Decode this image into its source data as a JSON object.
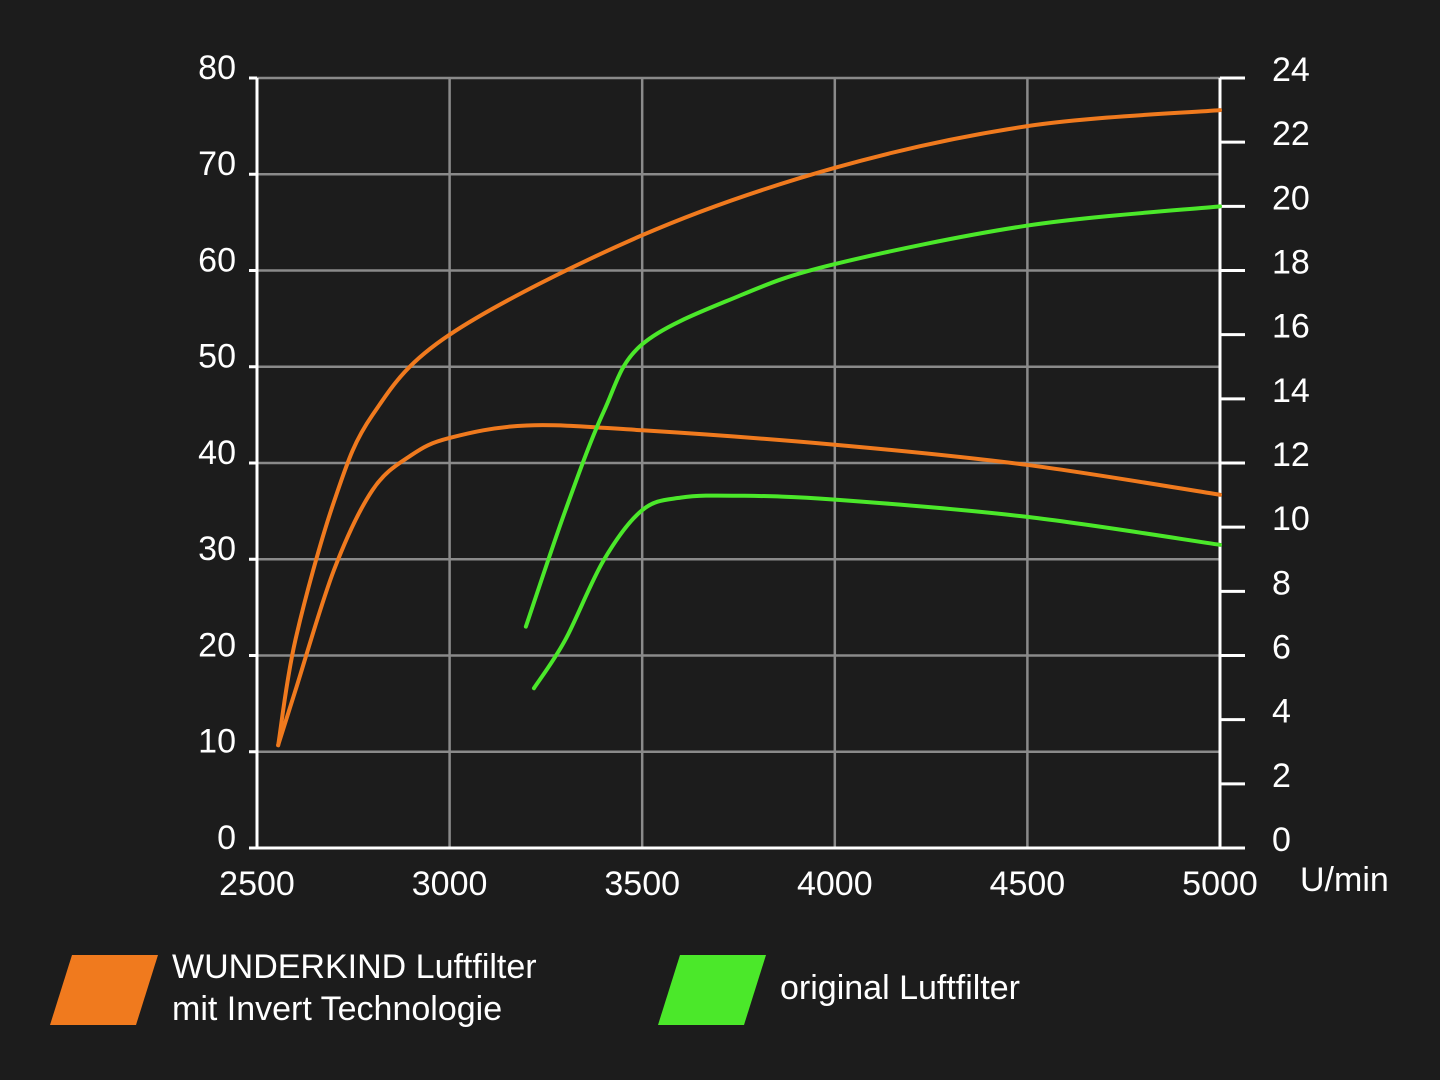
{
  "chart_data": {
    "type": "line",
    "xlabel": "U/min",
    "xlim": [
      2500,
      5000
    ],
    "xticks": [
      2500,
      3000,
      3500,
      4000,
      4500,
      5000
    ],
    "ylim": [
      0,
      80
    ],
    "yticks": [
      0,
      10,
      20,
      30,
      40,
      50,
      60,
      70,
      80
    ],
    "y2lim": [
      0,
      24
    ],
    "y2ticks": [
      0,
      2,
      4,
      6,
      8,
      10,
      12,
      14,
      16,
      18,
      20,
      22,
      24
    ],
    "grid": true,
    "series": [
      {
        "color": "#f07a1e",
        "axis": "y2",
        "x": [
          2555,
          2600,
          2700,
          2800,
          3000,
          3500,
          4000,
          4500,
          5000
        ],
        "values": [
          3.2,
          6.5,
          10.8,
          13.5,
          16.0,
          19.1,
          21.2,
          22.5,
          23.0
        ]
      },
      {
        "color": "#f07a1e",
        "axis": "y",
        "x": [
          2555,
          2600,
          2700,
          2800,
          2900,
          3000,
          3200,
          3500,
          4000,
          4500,
          5000
        ],
        "values": [
          10.7,
          16.4,
          28.9,
          37.2,
          40.8,
          42.6,
          43.9,
          43.4,
          41.9,
          39.8,
          36.7
        ]
      },
      {
        "color": "#4be82a",
        "axis": "y2",
        "x": [
          3198,
          3300,
          3400,
          3500,
          3750,
          4000,
          4500,
          5000
        ],
        "values": [
          6.9,
          10.5,
          13.6,
          15.7,
          17.2,
          18.2,
          19.4,
          20.0
        ]
      },
      {
        "color": "#4be82a",
        "axis": "y",
        "x": [
          3219,
          3300,
          3400,
          3500,
          3600,
          3750,
          4000,
          4500,
          5000
        ],
        "values": [
          16.6,
          21.6,
          29.9,
          35.1,
          36.4,
          36.6,
          36.2,
          34.4,
          31.5
        ]
      }
    ],
    "legend": [
      {
        "lines": [
          "WUNDERKIND Luftfilter",
          "mit Invert Technologie"
        ],
        "color": "#f07a1e"
      },
      {
        "lines": [
          "original Luftfilter"
        ],
        "color": "#4be82a"
      }
    ]
  }
}
